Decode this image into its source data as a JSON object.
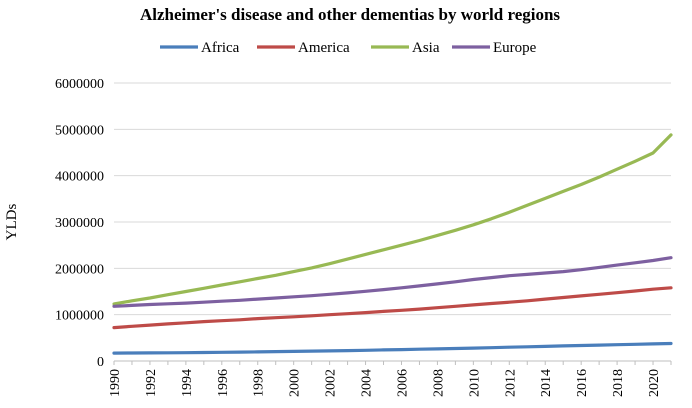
{
  "chart_data": {
    "type": "line",
    "title": "Alzheimer's disease and other dementias by world regions",
    "xlabel": "",
    "ylabel": "YLDs",
    "ylim": [
      0,
      6000000
    ],
    "yticks": [
      "0",
      "1000000",
      "2000000",
      "3000000",
      "4000000",
      "5000000",
      "6000000"
    ],
    "yticks_values": [
      0,
      1000000,
      2000000,
      3000000,
      4000000,
      5000000,
      6000000
    ],
    "x": [
      1990,
      1991,
      1992,
      1993,
      1994,
      1995,
      1996,
      1997,
      1998,
      1999,
      2000,
      2001,
      2002,
      2003,
      2004,
      2005,
      2006,
      2007,
      2008,
      2009,
      2010,
      2011,
      2012,
      2013,
      2014,
      2015,
      2016,
      2017,
      2018,
      2019,
      2020,
      2021
    ],
    "xticks": [
      "1990",
      "1992",
      "1994",
      "1996",
      "1998",
      "2000",
      "2002",
      "2004",
      "2006",
      "2008",
      "2010",
      "2012",
      "2014",
      "2016",
      "2018",
      "2020"
    ],
    "legend_position": "top",
    "grid": "horizontal",
    "series": [
      {
        "name": "Africa",
        "color": "#4a7ebb",
        "values": [
          170000,
          172000,
          174000,
          177000,
          180000,
          184000,
          188000,
          192000,
          197000,
          202000,
          207000,
          213000,
          219000,
          225000,
          232000,
          239000,
          246000,
          254000,
          262000,
          270000,
          279000,
          288000,
          297000,
          306000,
          315000,
          325000,
          334000,
          343000,
          352000,
          360000,
          368000,
          378000
        ]
      },
      {
        "name": "America",
        "color": "#be4b48",
        "values": [
          720000,
          750000,
          775000,
          800000,
          825000,
          850000,
          870000,
          890000,
          915000,
          935000,
          955000,
          975000,
          1000000,
          1020000,
          1045000,
          1070000,
          1095000,
          1120000,
          1150000,
          1180000,
          1210000,
          1240000,
          1270000,
          1300000,
          1335000,
          1370000,
          1405000,
          1440000,
          1475000,
          1510000,
          1550000,
          1580000
        ]
      },
      {
        "name": "Asia",
        "color": "#98b954",
        "values": [
          1230000,
          1300000,
          1360000,
          1430000,
          1500000,
          1570000,
          1640000,
          1710000,
          1780000,
          1850000,
          1930000,
          2010000,
          2100000,
          2200000,
          2300000,
          2400000,
          2500000,
          2600000,
          2710000,
          2820000,
          2940000,
          3070000,
          3210000,
          3360000,
          3510000,
          3660000,
          3810000,
          3970000,
          4140000,
          4310000,
          4490000,
          4880000
        ]
      },
      {
        "name": "Europe",
        "color": "#7d60a0",
        "values": [
          1180000,
          1200000,
          1220000,
          1235000,
          1250000,
          1270000,
          1290000,
          1310000,
          1335000,
          1360000,
          1385000,
          1410000,
          1440000,
          1470000,
          1505000,
          1540000,
          1580000,
          1620000,
          1665000,
          1710000,
          1760000,
          1800000,
          1840000,
          1870000,
          1900000,
          1930000,
          1970000,
          2020000,
          2070000,
          2120000,
          2170000,
          2230000
        ]
      }
    ]
  }
}
